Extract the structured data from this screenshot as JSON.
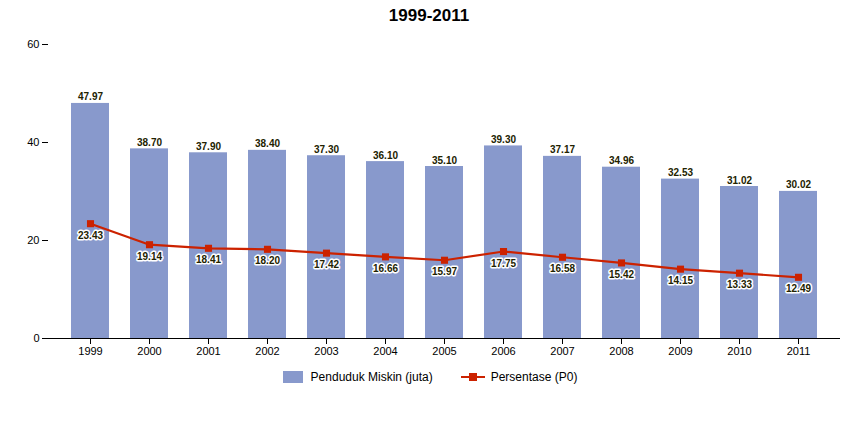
{
  "chart_data": {
    "type": "bar",
    "title": "1999-2011",
    "categories": [
      "1999",
      "2000",
      "2001",
      "2002",
      "2003",
      "2004",
      "2005",
      "2006",
      "2007",
      "2008",
      "2009",
      "2010",
      "2011"
    ],
    "series": [
      {
        "name": "Penduduk Miskin (juta)",
        "type": "bar",
        "color": "#8899cc",
        "values": [
          47.97,
          38.7,
          37.9,
          38.4,
          37.3,
          36.1,
          35.1,
          39.3,
          37.17,
          34.96,
          32.53,
          31.02,
          30.02
        ],
        "value_labels": [
          "47.97",
          "38.70",
          "37.90",
          "38.40",
          "37.30",
          "36.10",
          "35.10",
          "39.30",
          "37.17",
          "34.96",
          "32.53",
          "31.02",
          "30.02"
        ]
      },
      {
        "name": "Persentase (P0)",
        "type": "line",
        "color": "#cc2200",
        "marker": "square",
        "values": [
          23.43,
          19.14,
          18.41,
          18.2,
          17.42,
          16.66,
          15.97,
          17.75,
          16.58,
          15.42,
          14.15,
          13.33,
          12.49
        ],
        "value_labels": [
          "23.43",
          "19.14",
          "18.41",
          "18.20",
          "17.42",
          "16.66",
          "15.97",
          "17.75",
          "16.58",
          "15.42",
          "14.15",
          "13.33",
          "12.49"
        ]
      }
    ],
    "ylim": [
      0,
      60
    ],
    "yticks": [
      0,
      20,
      40,
      60
    ],
    "data_labels": true,
    "grid": false,
    "legend": "bottom"
  }
}
